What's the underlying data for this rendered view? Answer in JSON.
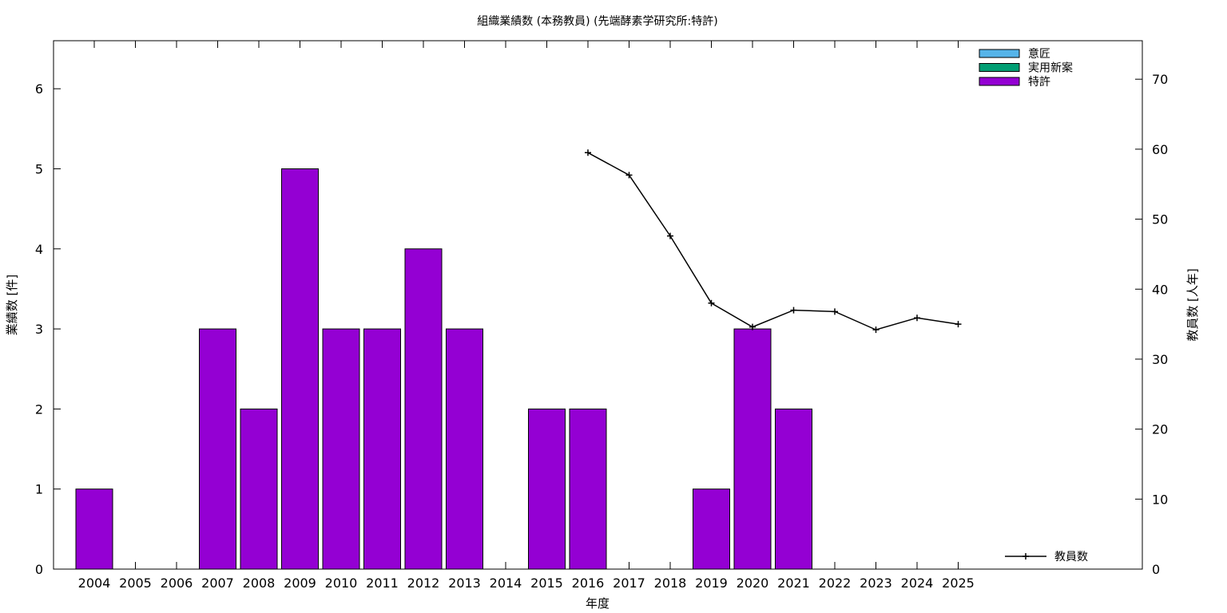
{
  "chart_data": {
    "title": "組織業績数 (本務教員) (先端酵素学研究所:特許)",
    "xlabel": "年度",
    "ylabel_left": "業績数 [件]",
    "ylabel_right": "教員数 [人年]",
    "categories": [
      "2004",
      "2005",
      "2006",
      "2007",
      "2008",
      "2009",
      "2010",
      "2011",
      "2012",
      "2013",
      "2014",
      "2015",
      "2016",
      "2017",
      "2018",
      "2019",
      "2020",
      "2021",
      "2022",
      "2023",
      "2024",
      "2025"
    ],
    "y_left": {
      "lim": [
        0,
        6.6
      ],
      "ticks": [
        "0",
        "1",
        "2",
        "3",
        "4",
        "5",
        "6"
      ]
    },
    "y_right": {
      "lim": [
        0,
        75.5
      ],
      "ticks": [
        "0",
        "10",
        "20",
        "30",
        "40",
        "50",
        "60",
        "70"
      ]
    },
    "bar_series": [
      {
        "name": "意匠",
        "color": "#56b4e9",
        "values": [
          0,
          0,
          0,
          0,
          0,
          0,
          0,
          0,
          0,
          0,
          0,
          0,
          0,
          0,
          0,
          0,
          0,
          0,
          0,
          0,
          0,
          0
        ]
      },
      {
        "name": "実用新案",
        "color": "#009e73",
        "values": [
          0,
          0,
          0,
          0,
          0,
          0,
          0,
          0,
          0,
          0,
          0,
          0,
          0,
          0,
          0,
          0,
          0,
          0,
          0,
          0,
          0,
          0
        ]
      },
      {
        "name": "特許",
        "color": "#9400d3",
        "values": [
          1,
          0,
          0,
          3,
          2,
          5,
          3,
          3,
          4,
          3,
          0,
          2,
          2,
          0,
          0,
          1,
          3,
          2,
          0,
          0,
          0,
          0
        ]
      }
    ],
    "line_series": {
      "name": "教員数",
      "color": "#000000",
      "values": [
        null,
        null,
        null,
        null,
        null,
        null,
        null,
        null,
        null,
        null,
        null,
        null,
        59.5,
        56.3,
        47.6,
        38.0,
        34.6,
        37.0,
        36.8,
        34.2,
        35.9,
        35.0
      ]
    },
    "legend_position": "top-right (bars), bottom-right (line)"
  }
}
